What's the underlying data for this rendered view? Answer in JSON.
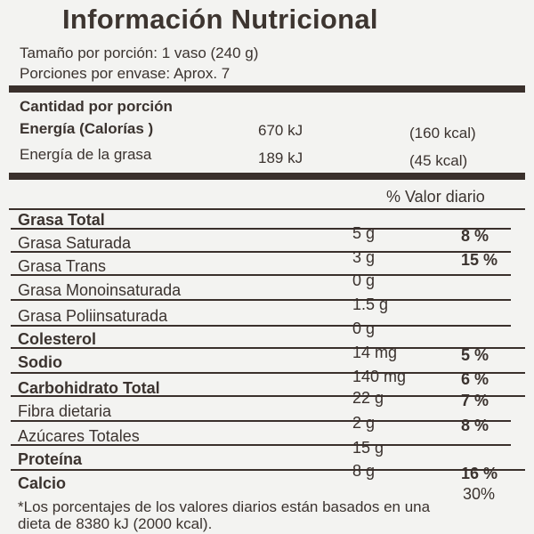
{
  "title": "Información Nutricional",
  "serving": {
    "size": "Tamaño por porción: 1 vaso (240 g)",
    "servings": "Porciones por envase: Aprox. 7"
  },
  "energy": {
    "header": "Cantidad por porción",
    "calories_label": "Energía  (Calorías )",
    "calories_kj": "670 kJ",
    "calories_kcal": "(160 kcal)",
    "fat_energy_label": "Energía de la grasa",
    "fat_energy_kj": "189 kJ",
    "fat_energy_kcal": "(45 kcal)"
  },
  "dv_header": "% Valor diario",
  "nutrients": [
    {
      "name": "Grasa Total",
      "amount": "5 g",
      "dv": "8 %"
    },
    {
      "name": "Grasa Saturada",
      "amount": "3 g",
      "dv": "15 %"
    },
    {
      "name": "Grasa Trans",
      "amount": "0 g",
      "dv": ""
    },
    {
      "name": "Grasa Monoinsaturada",
      "amount": "1.5 g",
      "dv": ""
    },
    {
      "name": "Grasa Poliinsaturada",
      "amount": "0 g",
      "dv": ""
    },
    {
      "name": "Colesterol",
      "amount": "14 mg",
      "dv": "5 %"
    },
    {
      "name": "Sodio",
      "amount": "140 mg",
      "dv": "6 %"
    },
    {
      "name": "Carbohidrato Total",
      "amount": "22 g",
      "dv": "7 %"
    },
    {
      "name": "Fibra dietaria",
      "amount": "2 g",
      "dv": "8 %"
    },
    {
      "name": "Azúcares Totales",
      "amount": "15 g",
      "dv": ""
    },
    {
      "name": "Proteína",
      "amount": "8 g",
      "dv": "16 %"
    },
    {
      "name": "Calcio",
      "amount": "",
      "dv": "30%"
    }
  ],
  "footnote": {
    "line1": "*Los porcentajes de los valores diarios están basados en una",
    "line2": "dieta de 8380 kJ (2000  kcal)."
  }
}
